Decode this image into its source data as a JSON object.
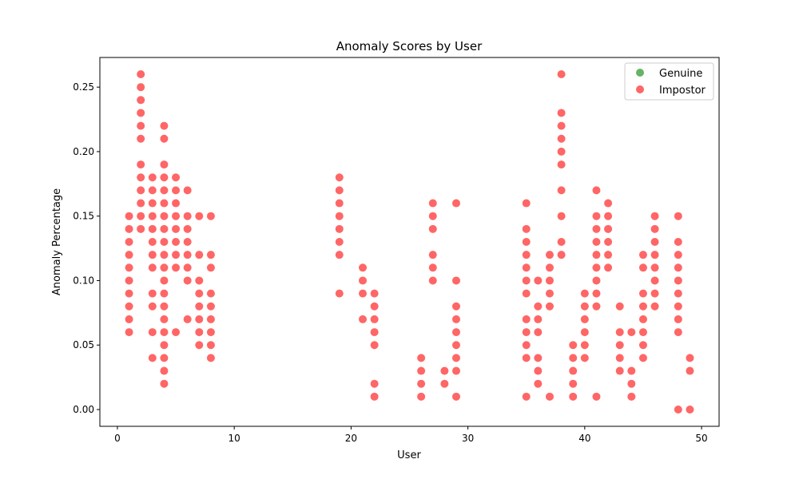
{
  "chart_data": {
    "type": "scatter",
    "title": "Anomaly Scores by User",
    "xlabel": "User",
    "ylabel": "Anomaly Percentage",
    "xlim": [
      -1.5,
      51.5
    ],
    "ylim": [
      -0.013,
      0.273
    ],
    "xticks": [
      0,
      10,
      20,
      30,
      40,
      50
    ],
    "xtick_labels": [
      "0",
      "10",
      "20",
      "30",
      "40",
      "50"
    ],
    "yticks": [
      0.0,
      0.05,
      0.1,
      0.15,
      0.2,
      0.25
    ],
    "ytick_labels": [
      "0.00",
      "0.05",
      "0.10",
      "0.15",
      "0.20",
      "0.25"
    ],
    "grid": false,
    "legend_position": "top-right",
    "series": [
      {
        "name": "Genuine",
        "color": "#008000",
        "points": []
      },
      {
        "name": "Impostor",
        "color": "#ff0000",
        "points": [
          [
            1,
            0.06
          ],
          [
            1,
            0.07
          ],
          [
            1,
            0.08
          ],
          [
            1,
            0.09
          ],
          [
            1,
            0.1
          ],
          [
            1,
            0.11
          ],
          [
            1,
            0.12
          ],
          [
            1,
            0.13
          ],
          [
            1,
            0.14
          ],
          [
            1,
            0.15
          ],
          [
            2,
            0.14
          ],
          [
            2,
            0.15
          ],
          [
            2,
            0.16
          ],
          [
            2,
            0.17
          ],
          [
            2,
            0.18
          ],
          [
            2,
            0.19
          ],
          [
            2,
            0.21
          ],
          [
            2,
            0.22
          ],
          [
            2,
            0.23
          ],
          [
            2,
            0.24
          ],
          [
            2,
            0.25
          ],
          [
            2,
            0.26
          ],
          [
            3,
            0.04
          ],
          [
            3,
            0.06
          ],
          [
            3,
            0.08
          ],
          [
            3,
            0.09
          ],
          [
            3,
            0.11
          ],
          [
            3,
            0.12
          ],
          [
            3,
            0.13
          ],
          [
            3,
            0.14
          ],
          [
            3,
            0.15
          ],
          [
            3,
            0.16
          ],
          [
            3,
            0.17
          ],
          [
            3,
            0.18
          ],
          [
            4,
            0.02
          ],
          [
            4,
            0.03
          ],
          [
            4,
            0.04
          ],
          [
            4,
            0.05
          ],
          [
            4,
            0.06
          ],
          [
            4,
            0.07
          ],
          [
            4,
            0.08
          ],
          [
            4,
            0.09
          ],
          [
            4,
            0.1
          ],
          [
            4,
            0.11
          ],
          [
            4,
            0.12
          ],
          [
            4,
            0.13
          ],
          [
            4,
            0.14
          ],
          [
            4,
            0.15
          ],
          [
            4,
            0.16
          ],
          [
            4,
            0.17
          ],
          [
            4,
            0.18
          ],
          [
            4,
            0.19
          ],
          [
            4,
            0.21
          ],
          [
            4,
            0.22
          ],
          [
            5,
            0.06
          ],
          [
            5,
            0.11
          ],
          [
            5,
            0.12
          ],
          [
            5,
            0.13
          ],
          [
            5,
            0.14
          ],
          [
            5,
            0.15
          ],
          [
            5,
            0.16
          ],
          [
            5,
            0.17
          ],
          [
            5,
            0.18
          ],
          [
            6,
            0.07
          ],
          [
            6,
            0.1
          ],
          [
            6,
            0.11
          ],
          [
            6,
            0.12
          ],
          [
            6,
            0.13
          ],
          [
            6,
            0.14
          ],
          [
            6,
            0.15
          ],
          [
            6,
            0.17
          ],
          [
            7,
            0.05
          ],
          [
            7,
            0.06
          ],
          [
            7,
            0.07
          ],
          [
            7,
            0.08
          ],
          [
            7,
            0.09
          ],
          [
            7,
            0.1
          ],
          [
            7,
            0.12
          ],
          [
            7,
            0.15
          ],
          [
            8,
            0.04
          ],
          [
            8,
            0.05
          ],
          [
            8,
            0.06
          ],
          [
            8,
            0.07
          ],
          [
            8,
            0.08
          ],
          [
            8,
            0.09
          ],
          [
            8,
            0.11
          ],
          [
            8,
            0.12
          ],
          [
            8,
            0.15
          ],
          [
            19,
            0.09
          ],
          [
            19,
            0.12
          ],
          [
            19,
            0.13
          ],
          [
            19,
            0.14
          ],
          [
            19,
            0.15
          ],
          [
            19,
            0.16
          ],
          [
            19,
            0.17
          ],
          [
            19,
            0.18
          ],
          [
            21,
            0.07
          ],
          [
            21,
            0.09
          ],
          [
            21,
            0.1
          ],
          [
            21,
            0.11
          ],
          [
            22,
            0.01
          ],
          [
            22,
            0.02
          ],
          [
            22,
            0.05
          ],
          [
            22,
            0.06
          ],
          [
            22,
            0.07
          ],
          [
            22,
            0.08
          ],
          [
            22,
            0.09
          ],
          [
            26,
            0.01
          ],
          [
            26,
            0.02
          ],
          [
            26,
            0.03
          ],
          [
            26,
            0.04
          ],
          [
            27,
            0.1
          ],
          [
            27,
            0.11
          ],
          [
            27,
            0.12
          ],
          [
            27,
            0.14
          ],
          [
            27,
            0.15
          ],
          [
            27,
            0.16
          ],
          [
            28,
            0.02
          ],
          [
            28,
            0.03
          ],
          [
            29,
            0.01
          ],
          [
            29,
            0.03
          ],
          [
            29,
            0.04
          ],
          [
            29,
            0.05
          ],
          [
            29,
            0.06
          ],
          [
            29,
            0.07
          ],
          [
            29,
            0.08
          ],
          [
            29,
            0.1
          ],
          [
            29,
            0.16
          ],
          [
            35,
            0.01
          ],
          [
            35,
            0.04
          ],
          [
            35,
            0.05
          ],
          [
            35,
            0.06
          ],
          [
            35,
            0.07
          ],
          [
            35,
            0.09
          ],
          [
            35,
            0.1
          ],
          [
            35,
            0.11
          ],
          [
            35,
            0.12
          ],
          [
            35,
            0.13
          ],
          [
            35,
            0.14
          ],
          [
            35,
            0.16
          ],
          [
            36,
            0.02
          ],
          [
            36,
            0.03
          ],
          [
            36,
            0.04
          ],
          [
            36,
            0.06
          ],
          [
            36,
            0.07
          ],
          [
            36,
            0.08
          ],
          [
            36,
            0.1
          ],
          [
            37,
            0.01
          ],
          [
            37,
            0.08
          ],
          [
            37,
            0.09
          ],
          [
            37,
            0.1
          ],
          [
            37,
            0.11
          ],
          [
            37,
            0.12
          ],
          [
            38,
            0.12
          ],
          [
            38,
            0.13
          ],
          [
            38,
            0.15
          ],
          [
            38,
            0.17
          ],
          [
            38,
            0.19
          ],
          [
            38,
            0.2
          ],
          [
            38,
            0.21
          ],
          [
            38,
            0.22
          ],
          [
            38,
            0.23
          ],
          [
            38,
            0.26
          ],
          [
            39,
            0.01
          ],
          [
            39,
            0.02
          ],
          [
            39,
            0.03
          ],
          [
            39,
            0.04
          ],
          [
            39,
            0.05
          ],
          [
            40,
            0.04
          ],
          [
            40,
            0.05
          ],
          [
            40,
            0.06
          ],
          [
            40,
            0.07
          ],
          [
            40,
            0.08
          ],
          [
            40,
            0.09
          ],
          [
            41,
            0.01
          ],
          [
            41,
            0.08
          ],
          [
            41,
            0.09
          ],
          [
            41,
            0.1
          ],
          [
            41,
            0.11
          ],
          [
            41,
            0.12
          ],
          [
            41,
            0.13
          ],
          [
            41,
            0.14
          ],
          [
            41,
            0.15
          ],
          [
            41,
            0.17
          ],
          [
            42,
            0.11
          ],
          [
            42,
            0.12
          ],
          [
            42,
            0.13
          ],
          [
            42,
            0.14
          ],
          [
            42,
            0.15
          ],
          [
            42,
            0.16
          ],
          [
            43,
            0.03
          ],
          [
            43,
            0.04
          ],
          [
            43,
            0.05
          ],
          [
            43,
            0.06
          ],
          [
            43,
            0.08
          ],
          [
            44,
            0.01
          ],
          [
            44,
            0.02
          ],
          [
            44,
            0.03
          ],
          [
            44,
            0.06
          ],
          [
            45,
            0.04
          ],
          [
            45,
            0.05
          ],
          [
            45,
            0.06
          ],
          [
            45,
            0.07
          ],
          [
            45,
            0.08
          ],
          [
            45,
            0.09
          ],
          [
            45,
            0.11
          ],
          [
            45,
            0.12
          ],
          [
            46,
            0.08
          ],
          [
            46,
            0.09
          ],
          [
            46,
            0.1
          ],
          [
            46,
            0.11
          ],
          [
            46,
            0.12
          ],
          [
            46,
            0.13
          ],
          [
            46,
            0.14
          ],
          [
            46,
            0.15
          ],
          [
            48,
            0.0
          ],
          [
            48,
            0.06
          ],
          [
            48,
            0.07
          ],
          [
            48,
            0.08
          ],
          [
            48,
            0.09
          ],
          [
            48,
            0.1
          ],
          [
            48,
            0.11
          ],
          [
            48,
            0.12
          ],
          [
            48,
            0.13
          ],
          [
            48,
            0.15
          ],
          [
            49,
            0.0
          ],
          [
            49,
            0.03
          ],
          [
            49,
            0.04
          ]
        ]
      }
    ]
  }
}
